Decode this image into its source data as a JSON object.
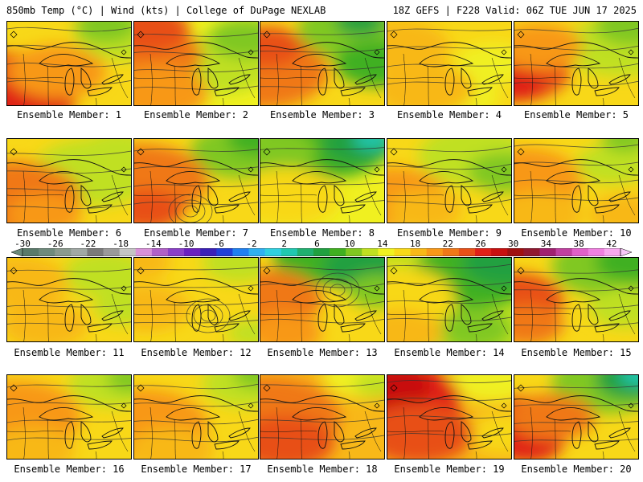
{
  "header": {
    "left": "850mb Temp (°C) | Wind (kts) | College of DuPage NEXLAB",
    "right": "18Z GEFS | F228 Valid: 06Z TUE JUN 17 2025"
  },
  "panels": [
    {
      "label": "Ensemble Member: 1"
    },
    {
      "label": "Ensemble Member: 2"
    },
    {
      "label": "Ensemble Member: 3"
    },
    {
      "label": "Ensemble Member: 4"
    },
    {
      "label": "Ensemble Member: 5"
    },
    {
      "label": "Ensemble Member: 6"
    },
    {
      "label": "Ensemble Member: 7"
    },
    {
      "label": "Ensemble Member: 8"
    },
    {
      "label": "Ensemble Member: 9"
    },
    {
      "label": "Ensemble Member: 10"
    },
    {
      "label": "Ensemble Member: 11"
    },
    {
      "label": "Ensemble Member: 12"
    },
    {
      "label": "Ensemble Member: 13"
    },
    {
      "label": "Ensemble Member: 14"
    },
    {
      "label": "Ensemble Member: 15"
    },
    {
      "label": "Ensemble Member: 16"
    },
    {
      "label": "Ensemble Member: 17"
    },
    {
      "label": "Ensemble Member: 18"
    },
    {
      "label": "Ensemble Member: 19"
    },
    {
      "label": "Ensemble Member: 20"
    }
  ],
  "colorbar": {
    "ticks": [
      "-30",
      "-26",
      "-22",
      "-18",
      "-14",
      "-10",
      "-6",
      "-2",
      "2",
      "6",
      "10",
      "14",
      "18",
      "22",
      "26",
      "30",
      "34",
      "38",
      "42"
    ],
    "colors": [
      "#5a7a6a",
      "#6f8a7c",
      "#8a9a8e",
      "#a0a8a4",
      "#7a7a7a",
      "#9a9a9a",
      "#c4c4c4",
      "#d890d8",
      "#b060c8",
      "#8a40c8",
      "#6a20c0",
      "#3a20b8",
      "#2040d8",
      "#2080f0",
      "#30b0f0",
      "#30d0e0",
      "#20c8b0",
      "#20b070",
      "#20a040",
      "#40b020",
      "#80c820",
      "#c0e020",
      "#f0f020",
      "#f8d818",
      "#f8b818",
      "#f89818",
      "#f07818",
      "#e85018",
      "#e02018",
      "#c81010",
      "#a01010",
      "#901830",
      "#a02070",
      "#c040a0",
      "#e060c8",
      "#f080e0",
      "#f8a8f0"
    ]
  }
}
